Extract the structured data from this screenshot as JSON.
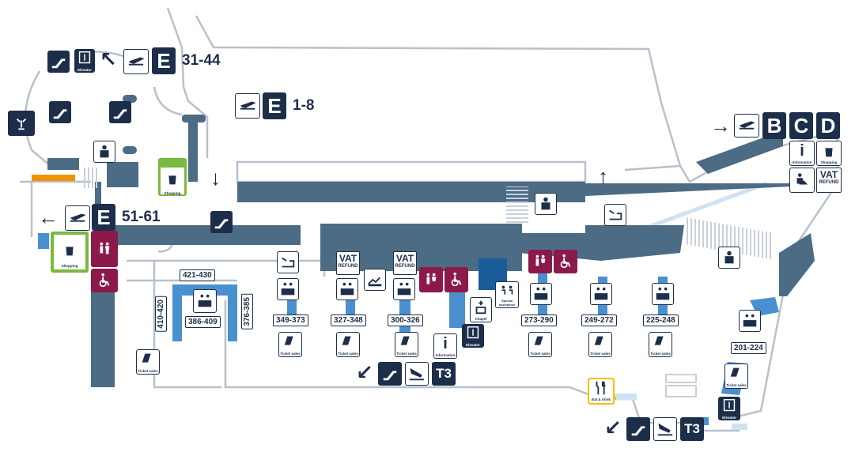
{
  "colors": {
    "wall": "#4c6b84",
    "light_blue": "#4a90cf",
    "outline": "#b8c0cc",
    "navy": "#1d2e4b",
    "purple": "#8b1a4a",
    "green": "#7ab93d",
    "yellow": "#f2c200",
    "orange": "#f29200"
  },
  "directions": {
    "e31": {
      "letter": "E",
      "range": "31-44"
    },
    "e1": {
      "letter": "E",
      "range": "1-8"
    },
    "e51": {
      "letter": "E",
      "range": "51-61"
    },
    "bcd": {
      "letters": [
        "B",
        "C",
        "D"
      ]
    },
    "t3_center": {
      "label": "T3"
    },
    "t3_bottom": {
      "label": "T3"
    }
  },
  "services": {
    "elevator": "Elevator",
    "shopping": "Shopping",
    "information": "Information",
    "ticket_sales": "Ticket sales",
    "chapel": "Chapel",
    "special_assistance": "Special assistance",
    "eat_drink": "Eat & drink",
    "vat_main": "VAT",
    "vat_sub": "REFUND"
  },
  "counters": {
    "c421": "421-430",
    "c386": "386-409",
    "c410": "410-420",
    "c376": "376-385",
    "c349": "349-373",
    "c327": "327-348",
    "c300": "300-326",
    "c273": "273-290",
    "c249": "249-272",
    "c225": "225-248",
    "c201": "201-224"
  }
}
